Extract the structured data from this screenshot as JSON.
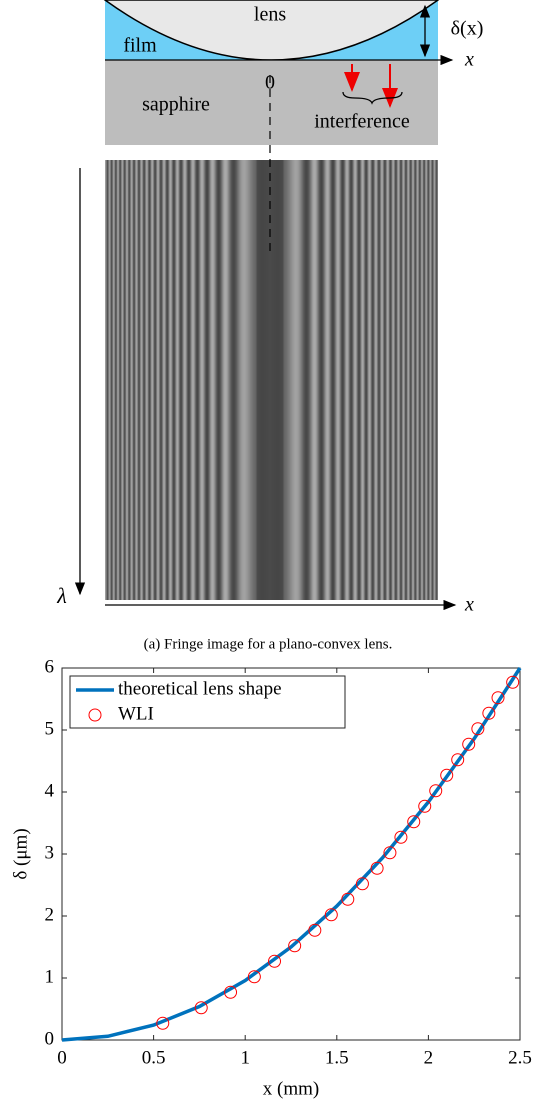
{
  "diagram": {
    "lens": "lens",
    "film": "film",
    "sapphire": "sapphire",
    "origin": "0",
    "interference": "interference",
    "delta": "δ(x)",
    "x_axis": "x",
    "wavelength_axis": "λ",
    "image_x_axis": "x"
  },
  "caption": "(a) Fringe image for a plano-convex lens.",
  "chart_data": {
    "type": "line",
    "xlabel": "x (mm)",
    "ylabel": "δ (μm)",
    "xlim": [
      0,
      2.5
    ],
    "ylim": [
      0,
      6
    ],
    "xticks": [
      0,
      0.5,
      1,
      1.5,
      2,
      2.5
    ],
    "yticks": [
      0,
      1,
      2,
      3,
      4,
      5,
      6
    ],
    "legend": "upper left",
    "series": [
      {
        "name": "theoretical lens shape",
        "color": "#0072bd",
        "style": "line",
        "x": [
          0,
          0.25,
          0.5,
          0.75,
          1,
          1.25,
          1.5,
          1.75,
          2,
          2.25,
          2.5
        ],
        "values": [
          0,
          0.06,
          0.24,
          0.54,
          0.96,
          1.5,
          2.16,
          2.94,
          3.84,
          4.86,
          6.0
        ]
      },
      {
        "name": "WLI",
        "color": "#ff0000",
        "style": "marker",
        "x": [
          0.55,
          0.76,
          0.92,
          1.05,
          1.16,
          1.27,
          1.38,
          1.47,
          1.56,
          1.64,
          1.72,
          1.79,
          1.85,
          1.92,
          1.98,
          2.04,
          2.1,
          2.16,
          2.22,
          2.27,
          2.33,
          2.38,
          2.46
        ],
        "values": [
          0.27,
          0.52,
          0.77,
          1.02,
          1.27,
          1.52,
          1.77,
          2.02,
          2.27,
          2.52,
          2.77,
          3.02,
          3.27,
          3.52,
          3.77,
          4.02,
          4.27,
          4.52,
          4.77,
          5.02,
          5.27,
          5.52,
          5.77
        ]
      }
    ]
  }
}
